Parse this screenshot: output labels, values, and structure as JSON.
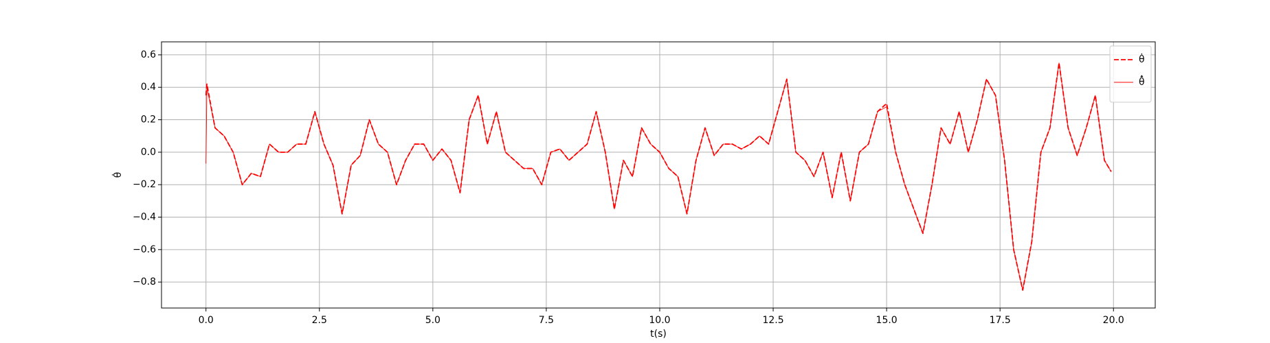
{
  "chart_data": {
    "type": "line",
    "xlabel": "t(s)",
    "ylabel": "θ̇",
    "x": [
      0,
      0.02,
      0.2,
      0.4,
      0.6,
      0.8,
      1,
      1.2,
      1.4,
      1.6,
      1.8,
      2,
      2.2,
      2.4,
      2.6,
      2.8,
      3,
      3.2,
      3.4,
      3.6,
      3.8,
      4,
      4.2,
      4.4,
      4.6,
      4.8,
      5,
      5.2,
      5.4,
      5.6,
      5.8,
      6,
      6.2,
      6.4,
      6.6,
      6.8,
      7,
      7.2,
      7.4,
      7.6,
      7.8,
      8,
      8.2,
      8.4,
      8.6,
      8.8,
      9,
      9.2,
      9.4,
      9.6,
      9.8,
      10,
      10.2,
      10.4,
      10.6,
      10.8,
      11,
      11.2,
      11.4,
      11.6,
      11.8,
      12,
      12.2,
      12.4,
      12.6,
      12.8,
      13,
      13.2,
      13.4,
      13.6,
      13.8,
      14,
      14.2,
      14.4,
      14.6,
      14.8,
      15,
      15.2,
      15.4,
      15.6,
      15.8,
      16,
      16.2,
      16.4,
      16.6,
      16.8,
      17,
      17.2,
      17.4,
      17.6,
      17.8,
      18,
      18.2,
      18.4,
      18.6,
      18.8,
      19,
      19.2,
      19.4,
      19.6,
      19.8,
      19.95
    ],
    "series": [
      {
        "name": "θ̇",
        "color": "#ff0000",
        "style": "dashed",
        "values": [
          0.35,
          0.42,
          0.15,
          0.1,
          0.0,
          -0.2,
          -0.13,
          -0.15,
          0.05,
          0.0,
          0.0,
          0.05,
          0.05,
          0.25,
          0.05,
          -0.08,
          -0.38,
          -0.08,
          -0.02,
          0.2,
          0.05,
          0.0,
          -0.2,
          -0.05,
          0.05,
          0.05,
          -0.05,
          0.02,
          -0.05,
          -0.25,
          0.2,
          0.35,
          0.05,
          0.25,
          0.0,
          -0.05,
          -0.1,
          -0.1,
          -0.2,
          0.0,
          0.02,
          -0.05,
          0.0,
          0.05,
          0.25,
          0.0,
          -0.35,
          -0.05,
          -0.15,
          0.15,
          0.05,
          0.0,
          -0.1,
          -0.15,
          -0.38,
          -0.05,
          0.15,
          -0.02,
          0.05,
          0.05,
          0.02,
          0.05,
          0.1,
          0.05,
          0.25,
          0.45,
          0.0,
          -0.05,
          -0.15,
          0.0,
          -0.28,
          0.0,
          -0.3,
          0.0,
          0.05,
          0.25,
          0.3,
          0.0,
          -0.2,
          -0.35,
          -0.5,
          -0.2,
          0.15,
          0.05,
          0.25,
          0.0,
          0.2,
          0.45,
          0.35,
          -0.05,
          -0.6,
          -0.85,
          -0.55,
          0.0,
          0.15,
          0.55,
          0.15,
          -0.02,
          0.15,
          0.35,
          -0.05,
          -0.12
        ]
      },
      {
        "name": "θ̂̇",
        "color": "#ff0000",
        "style": "solid",
        "values": [
          -0.07,
          0.4,
          0.15,
          0.1,
          0.0,
          -0.2,
          -0.13,
          -0.15,
          0.05,
          0.0,
          0.0,
          0.05,
          0.05,
          0.25,
          0.05,
          -0.08,
          -0.38,
          -0.08,
          -0.02,
          0.2,
          0.05,
          0.0,
          -0.2,
          -0.05,
          0.05,
          0.05,
          -0.05,
          0.02,
          -0.05,
          -0.25,
          0.2,
          0.35,
          0.05,
          0.25,
          0.0,
          -0.05,
          -0.1,
          -0.1,
          -0.2,
          0.0,
          0.02,
          -0.05,
          0.0,
          0.05,
          0.25,
          0.0,
          -0.35,
          -0.05,
          -0.15,
          0.15,
          0.05,
          0.0,
          -0.1,
          -0.15,
          -0.38,
          -0.05,
          0.15,
          -0.02,
          0.05,
          0.05,
          0.02,
          0.05,
          0.1,
          0.05,
          0.25,
          0.45,
          0.0,
          -0.05,
          -0.15,
          0.0,
          -0.28,
          0.0,
          -0.3,
          0.0,
          0.05,
          0.25,
          0.28,
          0.0,
          -0.2,
          -0.35,
          -0.5,
          -0.2,
          0.15,
          0.05,
          0.25,
          0.0,
          0.2,
          0.45,
          0.35,
          -0.05,
          -0.6,
          -0.85,
          -0.55,
          0.0,
          0.15,
          0.55,
          0.15,
          -0.02,
          0.15,
          0.35,
          -0.05,
          -0.12
        ]
      }
    ],
    "xlim": [
      -0.98,
      20.92
    ],
    "ylim": [
      -0.96,
      0.68
    ],
    "xticks": [
      {
        "value": 0,
        "label": "0.0"
      },
      {
        "value": 2.5,
        "label": "2.5"
      },
      {
        "value": 5,
        "label": "5.0"
      },
      {
        "value": 7.5,
        "label": "7.5"
      },
      {
        "value": 10,
        "label": "10.0"
      },
      {
        "value": 12.5,
        "label": "12.5"
      },
      {
        "value": 15,
        "label": "15.0"
      },
      {
        "value": 17.5,
        "label": "17.5"
      },
      {
        "value": 20,
        "label": "20.0"
      }
    ],
    "yticks": [
      {
        "value": -0.8,
        "label": "−0.8"
      },
      {
        "value": -0.6,
        "label": "−0.6"
      },
      {
        "value": -0.4,
        "label": "−0.4"
      },
      {
        "value": -0.2,
        "label": "−0.2"
      },
      {
        "value": 0,
        "label": "0.0"
      },
      {
        "value": 0.2,
        "label": "0.2"
      },
      {
        "value": 0.4,
        "label": "0.4"
      },
      {
        "value": 0.6,
        "label": "0.6"
      }
    ],
    "grid": true,
    "legend": "upper right"
  }
}
